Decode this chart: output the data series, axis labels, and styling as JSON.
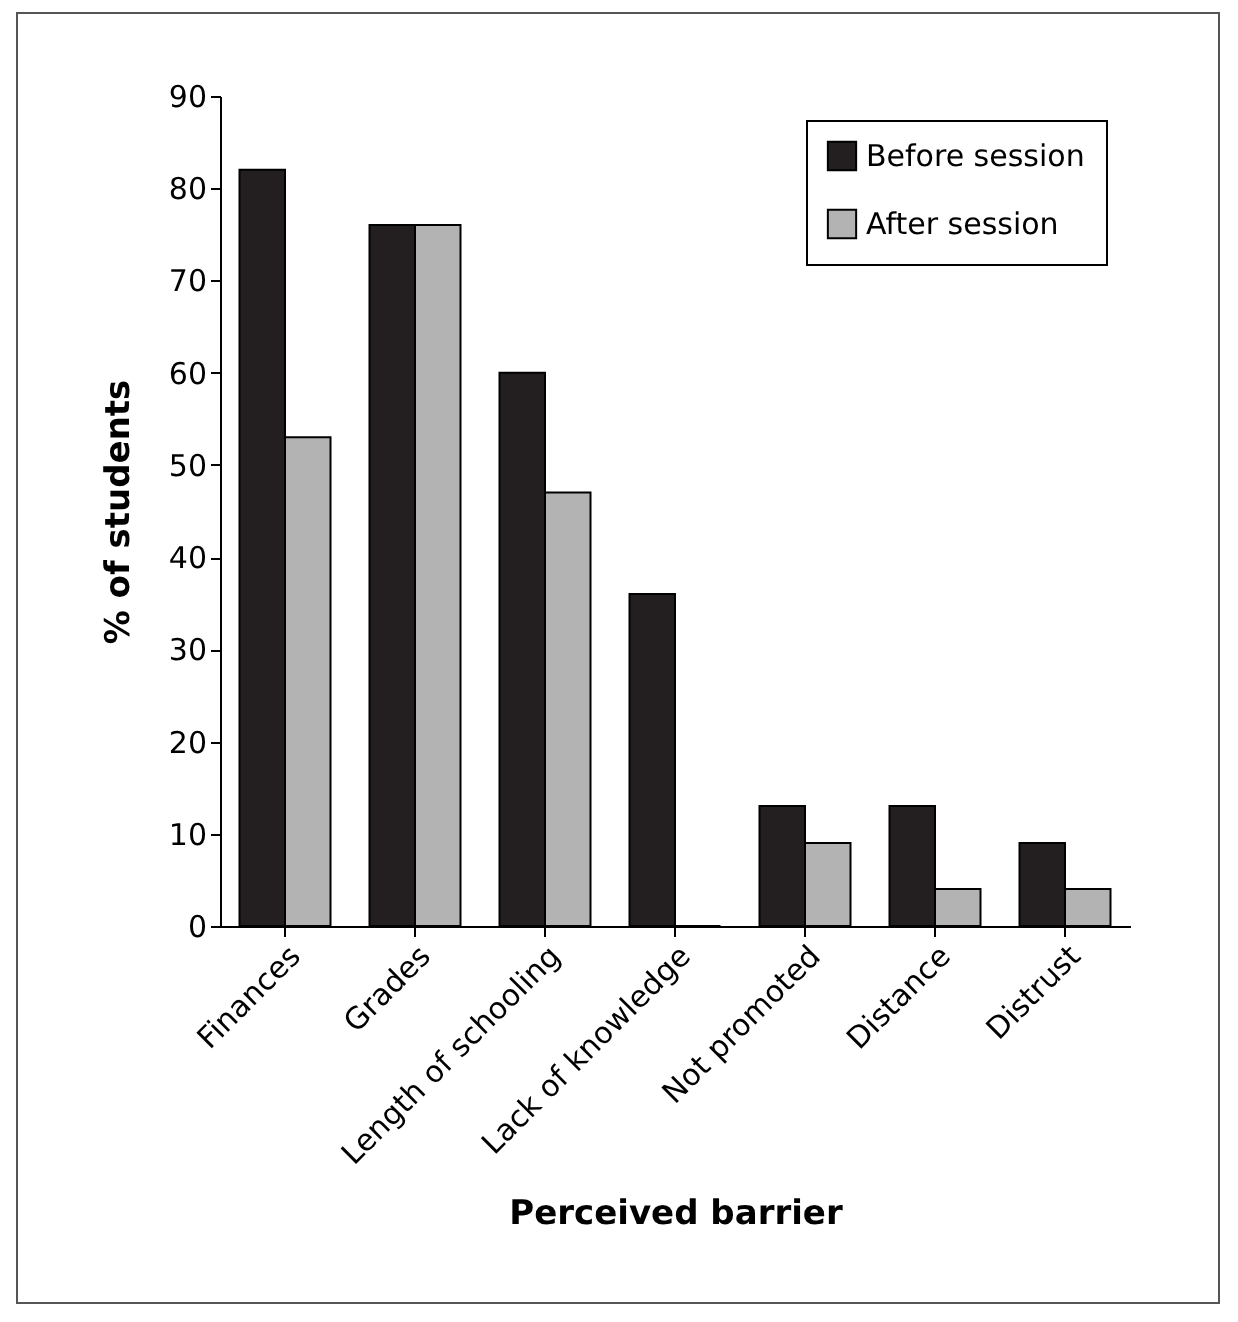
{
  "chart_data": {
    "type": "bar",
    "xlabel": "Perceived barrier",
    "ylabel": "% of students",
    "categories": [
      "Finances",
      "Grades",
      "Length of schooling",
      "Lack of knowledge",
      "Not promoted",
      "Distance",
      "Distrust"
    ],
    "series": [
      {
        "name": "Before session",
        "color": "#231f20",
        "values": [
          82,
          76,
          60,
          36,
          13,
          13,
          9
        ]
      },
      {
        "name": "After session",
        "color": "#b3b3b3",
        "values": [
          53,
          76,
          47,
          0,
          9,
          4,
          4
        ]
      }
    ],
    "ylim": [
      0,
      90
    ],
    "yticks": [
      0,
      10,
      20,
      30,
      40,
      50,
      60,
      70,
      80,
      90
    ],
    "grid": false,
    "legend": "top right"
  }
}
